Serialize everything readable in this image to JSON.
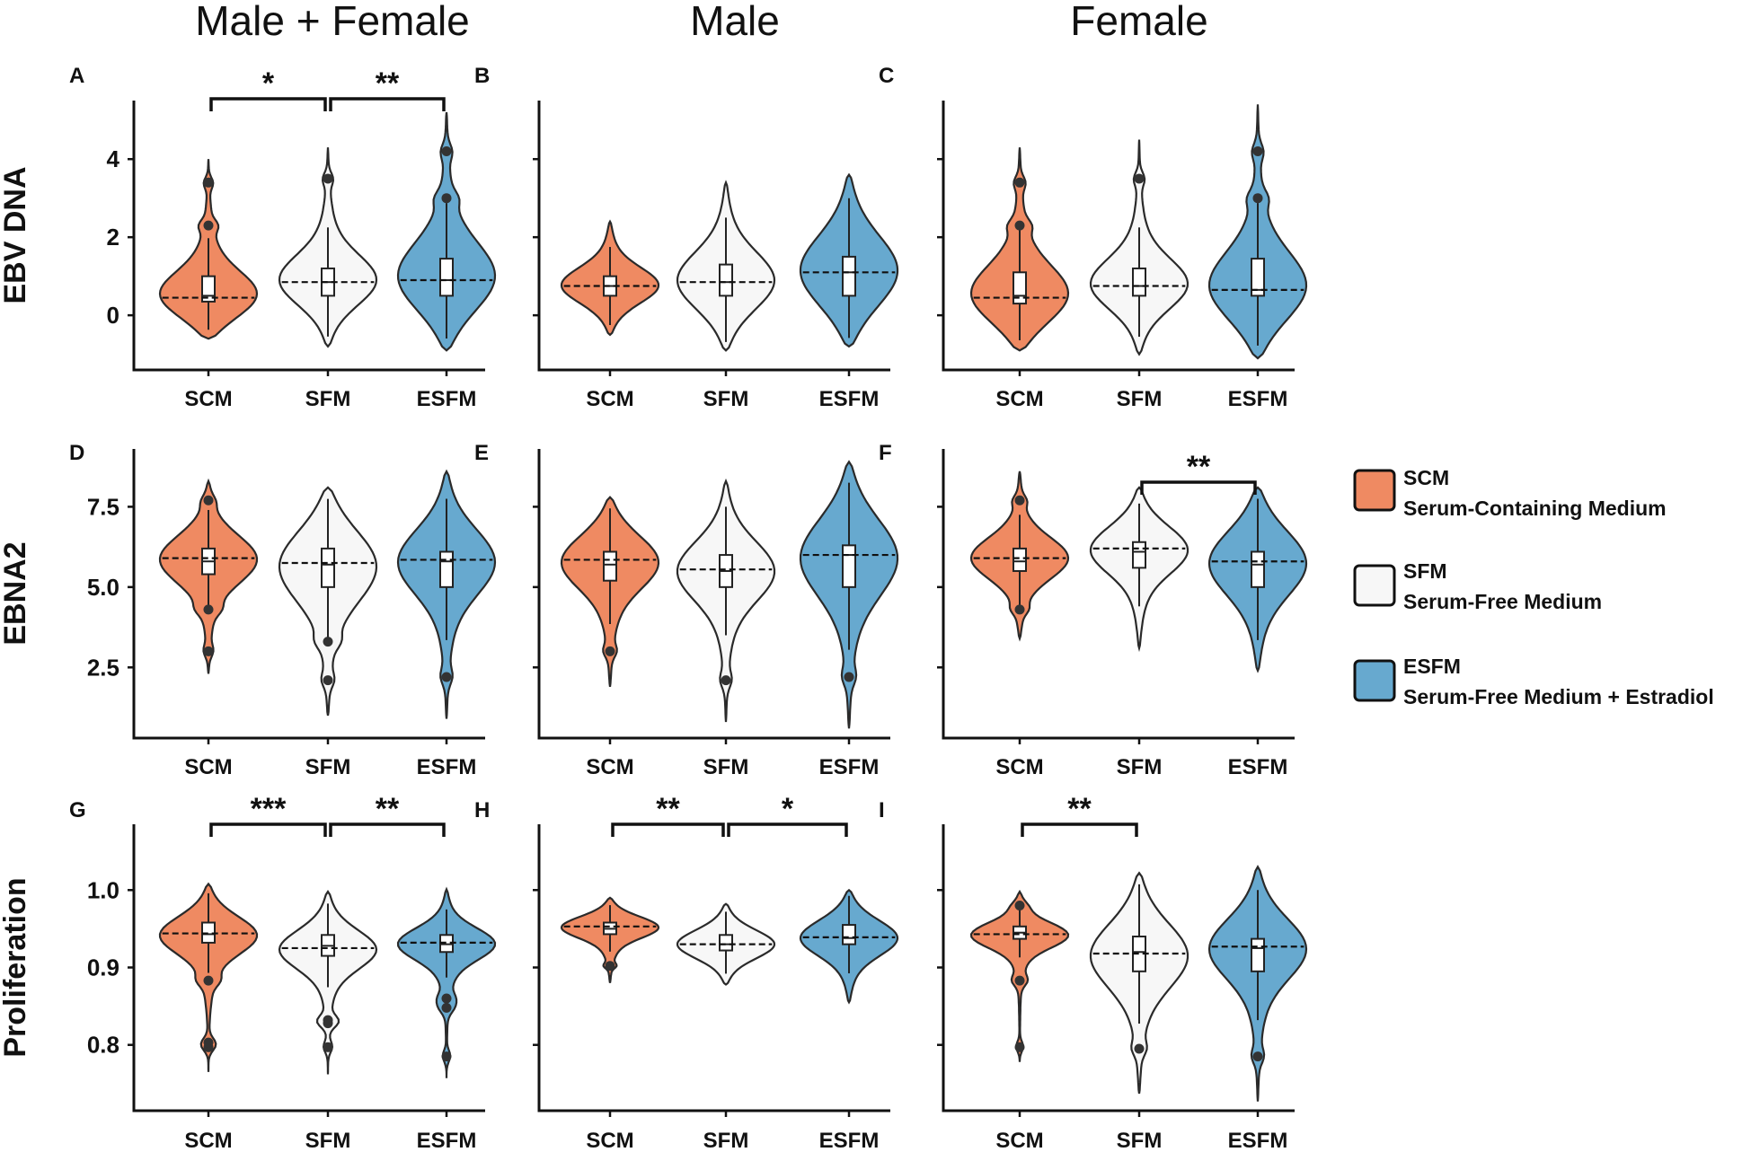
{
  "column_titles": [
    "Male + Female",
    "Male",
    "Female"
  ],
  "legend": [
    {
      "key": "SCM",
      "name": "SCM",
      "description": "Serum-Containing Medium",
      "color": "#ef8a62"
    },
    {
      "key": "SFM",
      "name": "SFM",
      "description": "Serum-Free Medium",
      "color": "#f7f7f7"
    },
    {
      "key": "ESFM",
      "name": "ESFM",
      "description": "Serum-Free Medium + Estradiol",
      "color": "#67a9cf"
    }
  ],
  "chart_data": [
    {
      "panel": "A",
      "type": "violin",
      "column": "Male + Female",
      "ylabel": "EBV DNA",
      "yticks": [
        "0",
        "2",
        "4"
      ],
      "ytick_values": [
        0,
        2,
        4
      ],
      "ylim": [
        -1.4,
        5.5
      ],
      "categories": [
        "SCM",
        "SFM",
        "ESFM"
      ],
      "groups": [
        {
          "name": "SCM",
          "min": -0.6,
          "max": 4.0,
          "median": 0.5,
          "q1": 0.35,
          "q3": 1.0,
          "mode": 0.45,
          "outliers": [
            2.3,
            3.4
          ]
        },
        {
          "name": "SFM",
          "min": -0.8,
          "max": 4.3,
          "median": 0.85,
          "q1": 0.5,
          "q3": 1.2,
          "mode": 0.85,
          "outliers": [
            3.5
          ]
        },
        {
          "name": "ESFM",
          "min": -0.9,
          "max": 5.2,
          "median": 0.9,
          "q1": 0.5,
          "q3": 1.45,
          "mode": 0.9,
          "outliers": [
            3.0,
            4.2
          ]
        }
      ],
      "significance": [
        {
          "from": "SCM",
          "to": "SFM",
          "label": "*"
        },
        {
          "from": "SFM",
          "to": "ESFM",
          "label": "**"
        }
      ]
    },
    {
      "panel": "B",
      "type": "violin",
      "column": "Male",
      "ylabel": "",
      "yticks": [],
      "ytick_values": [
        0,
        2,
        4
      ],
      "ylim": [
        -1.4,
        5.5
      ],
      "categories": [
        "SCM",
        "SFM",
        "ESFM"
      ],
      "groups": [
        {
          "name": "SCM",
          "min": -0.5,
          "max": 2.4,
          "median": 0.75,
          "q1": 0.5,
          "q3": 1.0,
          "mode": 0.75,
          "outliers": []
        },
        {
          "name": "SFM",
          "min": -0.9,
          "max": 3.4,
          "median": 0.85,
          "q1": 0.5,
          "q3": 1.3,
          "mode": 0.85,
          "outliers": []
        },
        {
          "name": "ESFM",
          "min": -0.8,
          "max": 3.6,
          "median": 1.1,
          "q1": 0.5,
          "q3": 1.5,
          "mode": 1.1,
          "outliers": []
        }
      ],
      "significance": []
    },
    {
      "panel": "C",
      "type": "violin",
      "column": "Female",
      "ylabel": "",
      "yticks": [],
      "ytick_values": [
        0,
        2,
        4
      ],
      "ylim": [
        -1.4,
        5.5
      ],
      "categories": [
        "SCM",
        "SFM",
        "ESFM"
      ],
      "groups": [
        {
          "name": "SCM",
          "min": -0.9,
          "max": 4.3,
          "median": 0.5,
          "q1": 0.3,
          "q3": 1.1,
          "mode": 0.45,
          "outliers": [
            2.3,
            3.4
          ]
        },
        {
          "name": "SFM",
          "min": -1.0,
          "max": 4.5,
          "median": 0.75,
          "q1": 0.5,
          "q3": 1.2,
          "mode": 0.75,
          "outliers": [
            3.5
          ]
        },
        {
          "name": "ESFM",
          "min": -1.1,
          "max": 5.4,
          "median": 0.65,
          "q1": 0.5,
          "q3": 1.45,
          "mode": 0.65,
          "outliers": [
            3.0,
            4.2
          ]
        }
      ],
      "significance": []
    },
    {
      "panel": "D",
      "type": "violin",
      "column": "Male + Female",
      "ylabel": "EBNA2",
      "yticks": [
        "2.5",
        "5.0",
        "7.5"
      ],
      "ytick_values": [
        2.5,
        5.0,
        7.5
      ],
      "ylim": [
        0.3,
        9.3
      ],
      "categories": [
        "SCM",
        "SFM",
        "ESFM"
      ],
      "groups": [
        {
          "name": "SCM",
          "min": 2.3,
          "max": 8.3,
          "median": 5.8,
          "q1": 5.4,
          "q3": 6.2,
          "mode": 5.9,
          "outliers": [
            3.0,
            4.3,
            7.7
          ]
        },
        {
          "name": "SFM",
          "min": 1.0,
          "max": 8.1,
          "median": 5.7,
          "q1": 5.0,
          "q3": 6.2,
          "mode": 5.75,
          "outliers": [
            2.1,
            3.3
          ]
        },
        {
          "name": "ESFM",
          "min": 0.9,
          "max": 8.6,
          "median": 5.8,
          "q1": 5.0,
          "q3": 6.1,
          "mode": 5.85,
          "outliers": [
            2.2
          ]
        }
      ],
      "significance": []
    },
    {
      "panel": "E",
      "type": "violin",
      "column": "Male",
      "ylabel": "",
      "yticks": [],
      "ytick_values": [
        2.5,
        5.0,
        7.5
      ],
      "ylim": [
        0.3,
        9.3
      ],
      "categories": [
        "SCM",
        "SFM",
        "ESFM"
      ],
      "groups": [
        {
          "name": "SCM",
          "min": 1.9,
          "max": 7.8,
          "median": 5.7,
          "q1": 5.2,
          "q3": 6.1,
          "mode": 5.85,
          "outliers": [
            3.0
          ]
        },
        {
          "name": "SFM",
          "min": 0.8,
          "max": 8.3,
          "median": 5.5,
          "q1": 5.0,
          "q3": 6.0,
          "mode": 5.55,
          "outliers": [
            2.1
          ]
        },
        {
          "name": "ESFM",
          "min": 0.6,
          "max": 8.9,
          "median": 6.0,
          "q1": 5.0,
          "q3": 6.3,
          "mode": 6.0,
          "outliers": [
            2.2
          ]
        }
      ],
      "significance": []
    },
    {
      "panel": "F",
      "type": "violin",
      "column": "Female",
      "ylabel": "",
      "yticks": [],
      "ytick_values": [
        2.5,
        5.0,
        7.5
      ],
      "ylim": [
        0.3,
        9.3
      ],
      "categories": [
        "SCM",
        "SFM",
        "ESFM"
      ],
      "groups": [
        {
          "name": "SCM",
          "min": 3.4,
          "max": 8.6,
          "median": 5.8,
          "q1": 5.5,
          "q3": 6.2,
          "mode": 5.9,
          "outliers": [
            4.3,
            7.7
          ]
        },
        {
          "name": "SFM",
          "min": 3.1,
          "max": 8.1,
          "median": 6.1,
          "q1": 5.6,
          "q3": 6.4,
          "mode": 6.2,
          "outliers": []
        },
        {
          "name": "ESFM",
          "min": 2.4,
          "max": 8.1,
          "median": 5.7,
          "q1": 5.0,
          "q3": 6.1,
          "mode": 5.8,
          "outliers": []
        }
      ],
      "significance": [
        {
          "from": "SFM",
          "to": "ESFM",
          "label": "**"
        }
      ]
    },
    {
      "panel": "G",
      "type": "violin",
      "column": "Male + Female",
      "ylabel": "Proliferation",
      "yticks": [
        "0.8",
        "0.9",
        "1.0"
      ],
      "ytick_values": [
        0.8,
        0.9,
        1.0
      ],
      "ylim": [
        0.715,
        1.085
      ],
      "categories": [
        "SCM",
        "SFM",
        "ESFM"
      ],
      "groups": [
        {
          "name": "SCM",
          "min": 0.765,
          "max": 1.008,
          "median": 0.943,
          "q1": 0.932,
          "q3": 0.958,
          "mode": 0.944,
          "outliers": [
            0.797,
            0.803,
            0.883
          ]
        },
        {
          "name": "SFM",
          "min": 0.762,
          "max": 0.998,
          "median": 0.928,
          "q1": 0.915,
          "q3": 0.942,
          "mode": 0.925,
          "outliers": [
            0.797,
            0.828,
            0.832
          ]
        },
        {
          "name": "ESFM",
          "min": 0.757,
          "max": 1.001,
          "median": 0.93,
          "q1": 0.92,
          "q3": 0.942,
          "mode": 0.932,
          "outliers": [
            0.785,
            0.848,
            0.86
          ]
        }
      ],
      "significance": [
        {
          "from": "SCM",
          "to": "SFM",
          "label": "***"
        },
        {
          "from": "SFM",
          "to": "ESFM",
          "label": "**"
        }
      ]
    },
    {
      "panel": "H",
      "type": "violin",
      "column": "Male",
      "ylabel": "",
      "yticks": [],
      "ytick_values": [
        0.8,
        0.9,
        1.0
      ],
      "ylim": [
        0.715,
        1.085
      ],
      "categories": [
        "SCM",
        "SFM",
        "ESFM"
      ],
      "groups": [
        {
          "name": "SCM",
          "min": 0.88,
          "max": 0.99,
          "median": 0.95,
          "q1": 0.943,
          "q3": 0.958,
          "mode": 0.953,
          "outliers": [
            0.902
          ]
        },
        {
          "name": "SFM",
          "min": 0.878,
          "max": 0.982,
          "median": 0.93,
          "q1": 0.922,
          "q3": 0.942,
          "mode": 0.93,
          "outliers": []
        },
        {
          "name": "ESFM",
          "min": 0.855,
          "max": 1.0,
          "median": 0.938,
          "q1": 0.93,
          "q3": 0.955,
          "mode": 0.939,
          "outliers": []
        }
      ],
      "significance": [
        {
          "from": "SCM",
          "to": "SFM",
          "label": "**"
        },
        {
          "from": "SFM",
          "to": "ESFM",
          "label": "*"
        }
      ]
    },
    {
      "panel": "I",
      "type": "violin",
      "column": "Female",
      "ylabel": "",
      "yticks": [],
      "ytick_values": [
        0.8,
        0.9,
        1.0
      ],
      "ylim": [
        0.715,
        1.085
      ],
      "categories": [
        "SCM",
        "SFM",
        "ESFM"
      ],
      "groups": [
        {
          "name": "SCM",
          "min": 0.778,
          "max": 0.998,
          "median": 0.945,
          "q1": 0.937,
          "q3": 0.953,
          "mode": 0.943,
          "outliers": [
            0.797,
            0.883,
            0.98
          ]
        },
        {
          "name": "SFM",
          "min": 0.737,
          "max": 1.022,
          "median": 0.92,
          "q1": 0.895,
          "q3": 0.94,
          "mode": 0.918,
          "outliers": [
            0.795
          ]
        },
        {
          "name": "ESFM",
          "min": 0.727,
          "max": 1.03,
          "median": 0.925,
          "q1": 0.895,
          "q3": 0.937,
          "mode": 0.927,
          "outliers": [
            0.785
          ]
        }
      ],
      "significance": [
        {
          "from": "SCM",
          "to": "SFM",
          "label": "**"
        }
      ]
    }
  ]
}
